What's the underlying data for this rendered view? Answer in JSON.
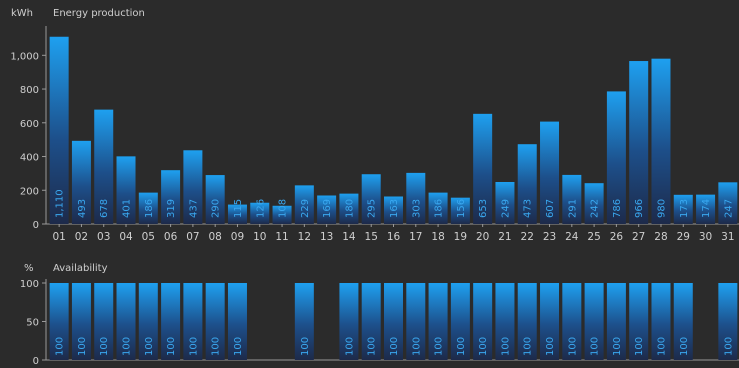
{
  "colors": {
    "background": "#2b2b2b",
    "bar_top": "#1ea0f0",
    "bar_bottom": "#1d2a4a",
    "value_label": "#3aa8f0",
    "axis": "#9a9a9a",
    "text": "#cfcfcf"
  },
  "chart_data": [
    {
      "type": "bar",
      "title": "Energy production",
      "ylabel": "kWh",
      "ylim": [
        0,
        1150
      ],
      "yticks": [
        0,
        200,
        400,
        600,
        800,
        1000
      ],
      "ytick_labels": [
        "0",
        "200",
        "400",
        "600",
        "800",
        "1,000"
      ],
      "categories": [
        "01",
        "02",
        "03",
        "04",
        "05",
        "06",
        "07",
        "08",
        "09",
        "10",
        "11",
        "12",
        "13",
        "14",
        "15",
        "16",
        "17",
        "18",
        "19",
        "20",
        "21",
        "22",
        "23",
        "24",
        "25",
        "26",
        "27",
        "28",
        "29",
        "30",
        "31"
      ],
      "values": [
        1110,
        493,
        678,
        401,
        186,
        319,
        437,
        290,
        115,
        126,
        108,
        229,
        169,
        180,
        295,
        163,
        303,
        186,
        156,
        653,
        249,
        473,
        607,
        291,
        242,
        786,
        966,
        980,
        173,
        174,
        247
      ],
      "value_labels": [
        "1,110",
        "493",
        "678",
        "401",
        "186",
        "319",
        "437",
        "290",
        "115",
        "126",
        "108",
        "229",
        "169",
        "180",
        "295",
        "163",
        "303",
        "186",
        "156",
        "653",
        "249",
        "473",
        "607",
        "291",
        "242",
        "786",
        "966",
        "980",
        "173",
        "174",
        "247"
      ],
      "grid": false,
      "legend": "none"
    },
    {
      "type": "bar",
      "title": "Availability",
      "ylabel": "%",
      "ylim": [
        0,
        100
      ],
      "yticks": [
        0,
        50,
        100
      ],
      "ytick_labels": [
        "0",
        "50",
        "100"
      ],
      "categories": [
        "01",
        "02",
        "03",
        "04",
        "05",
        "06",
        "07",
        "08",
        "09",
        "10",
        "11",
        "12",
        "13",
        "14",
        "15",
        "16",
        "17",
        "18",
        "19",
        "20",
        "21",
        "22",
        "23",
        "24",
        "25",
        "26",
        "27",
        "28",
        "29",
        "30",
        "31"
      ],
      "values": [
        100,
        100,
        100,
        100,
        100,
        100,
        100,
        100,
        100,
        0,
        0,
        100,
        0,
        100,
        100,
        100,
        100,
        100,
        100,
        100,
        100,
        100,
        100,
        100,
        100,
        100,
        100,
        100,
        100,
        0,
        100
      ],
      "value_labels": [
        "100",
        "100",
        "100",
        "100",
        "100",
        "100",
        "100",
        "100",
        "100",
        "",
        "",
        "100",
        "",
        "100",
        "100",
        "100",
        "100",
        "100",
        "100",
        "100",
        "100",
        "100",
        "100",
        "100",
        "100",
        "100",
        "100",
        "100",
        "100",
        "",
        "100"
      ],
      "grid": false,
      "legend": "none"
    }
  ]
}
